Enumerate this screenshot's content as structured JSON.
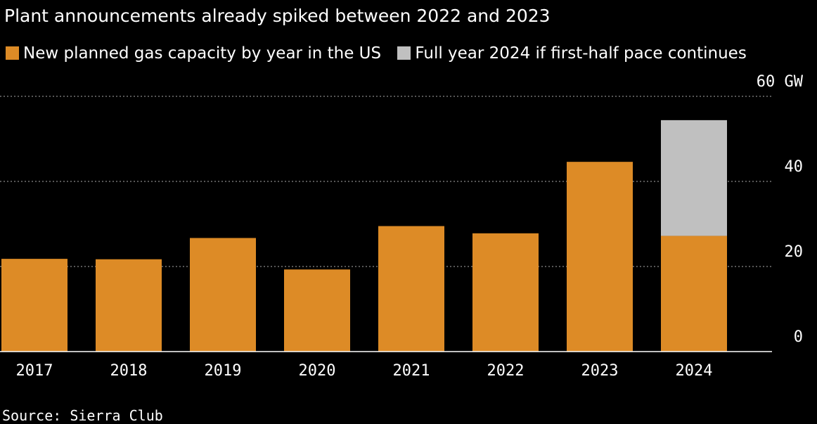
{
  "chart_data": {
    "type": "bar",
    "subtitle": "Plant announcements already spiked between 2022 and 2023",
    "categories": [
      "2017",
      "2018",
      "2019",
      "2020",
      "2021",
      "2022",
      "2023",
      "2024"
    ],
    "series": [
      {
        "name": "New planned gas capacity by year in the US",
        "color": "#dd8b26",
        "values": [
          21.8,
          21.7,
          26.7,
          19.3,
          29.5,
          27.8,
          44.6,
          27.2
        ]
      },
      {
        "name": "Full year 2024 if first-half pace continues",
        "color": "#c0c0c0",
        "stacked": true,
        "values": [
          null,
          null,
          null,
          null,
          null,
          null,
          null,
          27.2
        ]
      }
    ],
    "yaxis": {
      "ylim": [
        0,
        60
      ],
      "ticks": [
        0,
        20,
        40,
        60
      ],
      "tick_labels": [
        "0",
        "20",
        "40",
        "60 GW"
      ],
      "unit": "GW",
      "position": "right"
    },
    "grid": true,
    "legend": "top-left",
    "source": "Source: Sierra Club"
  }
}
